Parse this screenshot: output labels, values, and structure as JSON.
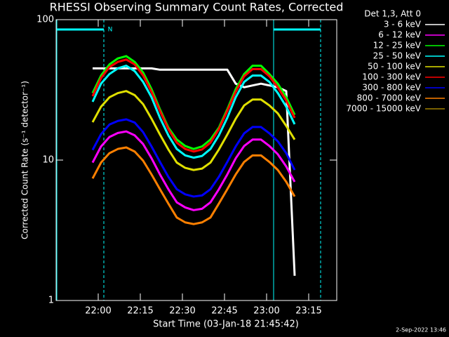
{
  "chart_data": {
    "type": "line",
    "title": "RHESSI Observing Summary Count Rates, Corrected",
    "xlabel": "Start Time (03-Jan-18 21:45:42)",
    "ylabel": "Corrected Count Rate (s⁻¹ detector⁻¹)",
    "legend_title": "Det 1,3, Att 0",
    "footnote": "2-Sep-2022 13:46",
    "annotations": [
      "N"
    ],
    "log_y": true,
    "xlim": [
      "21:45",
      "23:25"
    ],
    "xticks": [
      "22:00",
      "22:15",
      "22:30",
      "22:45",
      "23:00",
      "23:15"
    ],
    "ylim": [
      1,
      100
    ],
    "yticks": [
      1,
      10,
      100
    ],
    "x": [
      "21:58",
      "22:01",
      "22:04",
      "22:07",
      "22:10",
      "22:13",
      "22:16",
      "22:19",
      "22:22",
      "22:25",
      "22:28",
      "22:31",
      "22:34",
      "22:37",
      "22:40",
      "22:43",
      "22:46",
      "22:49",
      "22:52",
      "22:55",
      "22:58",
      "23:01",
      "23:04",
      "23:07",
      "23:10"
    ],
    "series": [
      {
        "name": "3 - 6 keV",
        "color": "#ffffff",
        "values": [
          45,
          45,
          45,
          45,
          45,
          45,
          45,
          45,
          44,
          44,
          44,
          44,
          44,
          44,
          44,
          44,
          44,
          35,
          33,
          34,
          35,
          34,
          33,
          31,
          1.5
        ]
      },
      {
        "name": "6 - 12 keV",
        "color": "#ff00ff",
        "values": [
          9.6,
          12.5,
          14.6,
          15.6,
          16,
          15,
          13,
          10.3,
          7.9,
          6.2,
          5,
          4.6,
          4.4,
          4.5,
          5,
          6.2,
          7.9,
          10.3,
          12.6,
          14,
          14,
          12.6,
          11,
          9,
          7
        ]
      },
      {
        "name": "12 - 25 keV",
        "color": "#00ff00",
        "values": [
          30,
          40,
          48,
          53,
          55,
          50,
          42,
          32,
          23,
          17,
          14,
          12.6,
          12,
          12.5,
          14,
          17,
          23,
          32,
          41,
          47,
          47,
          41,
          35,
          28,
          21
        ]
      },
      {
        "name": "25 - 50 keV",
        "color": "#00ffff",
        "values": [
          26,
          35,
          41,
          45,
          47,
          43,
          36,
          28,
          20,
          15,
          12,
          10.8,
          10.4,
          10.7,
          12,
          15,
          20,
          28,
          36,
          40,
          40,
          36,
          30,
          24,
          18
        ]
      },
      {
        "name": "50 - 100 keV",
        "color": "#e0e000",
        "values": [
          18.6,
          24,
          28,
          30,
          31,
          29,
          25,
          19.7,
          15.2,
          11.9,
          9.6,
          8.8,
          8.5,
          8.7,
          9.6,
          11.9,
          15.2,
          19.7,
          24.5,
          27,
          27,
          24.5,
          21.5,
          17.5,
          14
        ]
      },
      {
        "name": "100 - 300 keV",
        "color": "#ff0000",
        "values": [
          28.5,
          38.4,
          46,
          50,
          52,
          48,
          40,
          30.6,
          22.4,
          16.6,
          13.3,
          12,
          11.5,
          11.9,
          13.3,
          16.6,
          22.4,
          30.6,
          39.5,
          44.5,
          44.5,
          39.5,
          33,
          26.5,
          20
        ]
      },
      {
        "name": "300 - 800 keV",
        "color": "#0000ff",
        "values": [
          11.8,
          15.3,
          17.9,
          19,
          19.5,
          18.5,
          15.8,
          12.5,
          9.7,
          7.6,
          6.2,
          5.7,
          5.5,
          5.6,
          6.2,
          7.6,
          9.7,
          12.5,
          15.5,
          17.2,
          17.2,
          15.5,
          13.6,
          11.2,
          8.5
        ]
      },
      {
        "name": "800 - 7000 keV",
        "color": "#ff8000",
        "values": [
          7.4,
          9.6,
          11.2,
          12,
          12.3,
          11.5,
          9.9,
          7.9,
          6.2,
          4.9,
          3.9,
          3.6,
          3.5,
          3.6,
          3.9,
          4.9,
          6.2,
          7.9,
          9.7,
          10.8,
          10.8,
          9.7,
          8.5,
          7,
          5.5
        ]
      },
      {
        "name": "7000 - 15000 keV",
        "color": "#a08000",
        "values": [
          null,
          null,
          null,
          null,
          null,
          null,
          null,
          null,
          null,
          null,
          null,
          null,
          null,
          null,
          null,
          null,
          null,
          null,
          null,
          null,
          null,
          null,
          null,
          null,
          null
        ]
      }
    ]
  }
}
